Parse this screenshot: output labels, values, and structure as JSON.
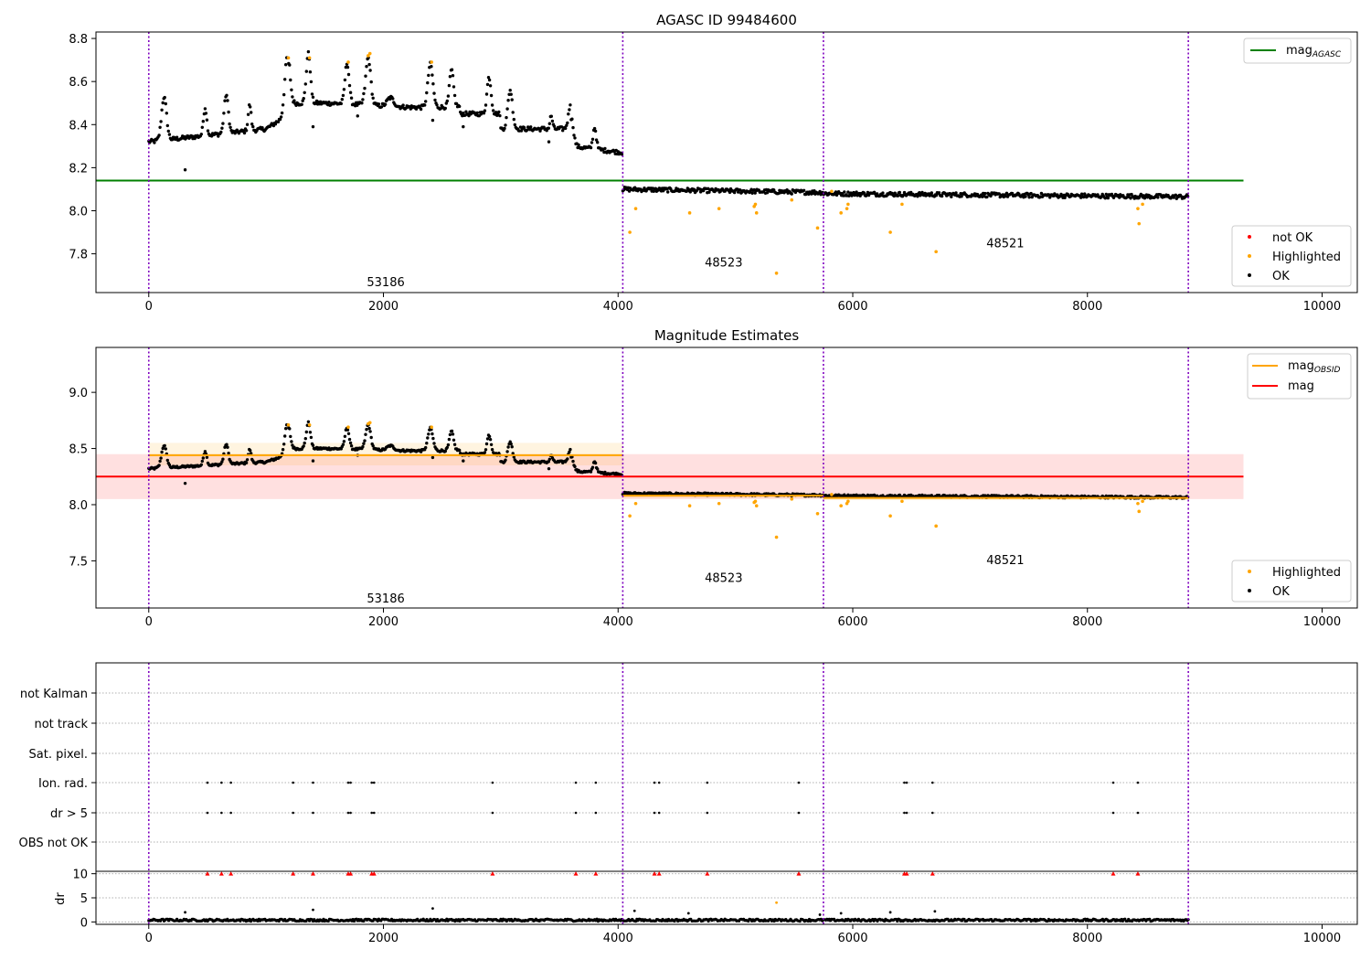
{
  "chart_data": [
    {
      "type": "scatter",
      "title": "AGASC ID 99484600",
      "xlabel": "",
      "ylabel": "",
      "xlim": [
        -450,
        10300
      ],
      "ylim": [
        7.62,
        8.83
      ],
      "x_ticks": [
        0,
        2000,
        4000,
        6000,
        8000,
        10000
      ],
      "y_ticks": [
        7.8,
        8.0,
        8.2,
        8.4,
        8.6,
        8.8
      ],
      "grid": false,
      "obs_boundaries": [
        0,
        4040,
        5750,
        8860
      ],
      "obsid_labels": [
        {
          "text": "53186",
          "x": 2020,
          "y": 7.65
        },
        {
          "text": "48523",
          "x": 4900,
          "y": 7.74
        },
        {
          "text": "48521",
          "x": 7300,
          "y": 7.83
        }
      ],
      "lines": [
        {
          "name": "mag_AGASC",
          "value": 8.14,
          "x_range": [
            -450,
            9330
          ],
          "color": "#008000"
        }
      ],
      "legend_lines": [
        {
          "label": "mag",
          "subscript": "AGASC",
          "color": "#008000"
        }
      ],
      "legend_points": [
        {
          "label": "not OK",
          "color": "#ff0000"
        },
        {
          "label": "Highlighted",
          "color": "#ffa500"
        },
        {
          "label": "OK",
          "color": "#000000"
        }
      ],
      "highlighted_points": [
        [
          1190,
          8.71
        ],
        [
          1370,
          8.71
        ],
        [
          1700,
          8.69
        ],
        [
          1870,
          8.72
        ],
        [
          1885,
          8.73
        ],
        [
          2410,
          8.69
        ],
        [
          4100,
          7.9
        ],
        [
          4150,
          8.01
        ],
        [
          4610,
          7.99
        ],
        [
          4860,
          8.01
        ],
        [
          5160,
          8.02
        ],
        [
          5170,
          8.03
        ],
        [
          5180,
          7.99
        ],
        [
          5350,
          7.71
        ],
        [
          5480,
          8.05
        ],
        [
          5700,
          7.92
        ],
        [
          5820,
          8.09
        ],
        [
          5900,
          7.99
        ],
        [
          5950,
          8.01
        ],
        [
          5960,
          8.03
        ],
        [
          6320,
          7.9
        ],
        [
          6420,
          8.03
        ],
        [
          6710,
          7.81
        ],
        [
          8430,
          8.01
        ],
        [
          8440,
          7.94
        ],
        [
          8470,
          8.03
        ]
      ]
    },
    {
      "type": "scatter",
      "title": "Magnitude Estimates",
      "xlabel": "",
      "ylabel": "",
      "xlim": [
        -450,
        10300
      ],
      "ylim": [
        7.08,
        9.4
      ],
      "x_ticks": [
        0,
        2000,
        4000,
        6000,
        8000,
        10000
      ],
      "y_ticks": [
        7.5,
        8.0,
        8.5,
        9.0
      ],
      "grid": false,
      "obs_boundaries": [
        0,
        4040,
        5750,
        8860
      ],
      "obsid_labels": [
        {
          "text": "53186",
          "x": 2020,
          "y": 7.13
        },
        {
          "text": "48523",
          "x": 4900,
          "y": 7.31
        },
        {
          "text": "48521",
          "x": 7300,
          "y": 7.47
        }
      ],
      "bands": [
        {
          "name": "mag",
          "center": 8.25,
          "low": 8.05,
          "high": 8.45,
          "x_range": [
            -450,
            9330
          ],
          "color": "#ff0000"
        },
        {
          "name": "mag_OBSID",
          "center": 8.44,
          "low": 8.35,
          "high": 8.55,
          "x_range": [
            0,
            4040
          ],
          "color": "#ffa500"
        },
        {
          "name": "mag_OBSID",
          "center": 8.08,
          "low": 8.06,
          "high": 8.1,
          "x_range": [
            4040,
            5750
          ],
          "color": "#ffa500"
        },
        {
          "name": "mag_OBSID",
          "center": 8.06,
          "low": 8.04,
          "high": 8.08,
          "x_range": [
            5750,
            8860
          ],
          "color": "#ffa500"
        }
      ],
      "legend_lines": [
        {
          "label": "mag",
          "subscript": "OBSID",
          "color": "#ffa500"
        },
        {
          "label": "mag",
          "subscript": "",
          "color": "#ff0000"
        }
      ],
      "legend_points": [
        {
          "label": "Highlighted",
          "color": "#ffa500"
        },
        {
          "label": "OK",
          "color": "#000000"
        }
      ],
      "highlighted_points": [
        [
          1190,
          8.71
        ],
        [
          1370,
          8.71
        ],
        [
          1700,
          8.69
        ],
        [
          1870,
          8.72
        ],
        [
          1885,
          8.73
        ],
        [
          2410,
          8.69
        ],
        [
          4100,
          7.9
        ],
        [
          4150,
          8.01
        ],
        [
          4610,
          7.99
        ],
        [
          4860,
          8.01
        ],
        [
          5160,
          8.02
        ],
        [
          5170,
          8.03
        ],
        [
          5180,
          7.99
        ],
        [
          5350,
          7.71
        ],
        [
          5480,
          8.05
        ],
        [
          5700,
          7.92
        ],
        [
          5820,
          8.09
        ],
        [
          5900,
          7.99
        ],
        [
          5950,
          8.01
        ],
        [
          5960,
          8.03
        ],
        [
          6320,
          7.9
        ],
        [
          6420,
          8.03
        ],
        [
          6710,
          7.81
        ],
        [
          8430,
          8.01
        ],
        [
          8440,
          7.94
        ],
        [
          8470,
          8.03
        ]
      ]
    },
    {
      "type": "scatter",
      "title": "",
      "xlim": [
        -450,
        10300
      ],
      "x_ticks": [
        0,
        2000,
        4000,
        6000,
        8000,
        10000
      ],
      "obs_boundaries": [
        0,
        4040,
        5750,
        8860
      ],
      "flag_rows": [
        "not Kalman",
        "not track",
        "Sat. pixel.",
        "Ion. rad.",
        "dr > 5",
        "OBS not OK"
      ],
      "flag_events": [
        {
          "flag": "Ion. rad.",
          "x": [
            500,
            620,
            700,
            1230,
            1400,
            1700,
            1720,
            1900,
            1920,
            2930,
            3640,
            3810,
            4310,
            4350,
            4760,
            5540,
            6440,
            6460,
            6680,
            8220,
            8430
          ]
        },
        {
          "flag": "dr > 5",
          "x": [
            500,
            620,
            700,
            1230,
            1400,
            1700,
            1720,
            1900,
            1920,
            2930,
            3640,
            3810,
            4310,
            4350,
            4760,
            5540,
            6440,
            6460,
            6680,
            8220,
            8430
          ]
        }
      ],
      "dr_panel": {
        "ylabel": "dr",
        "ylim": [
          -0.5,
          10.5
        ],
        "y_ticks": [
          0,
          5,
          10
        ],
        "clipped_marker_x": [
          500,
          620,
          700,
          1230,
          1400,
          1700,
          1720,
          1900,
          1920,
          2930,
          3640,
          3810,
          4310,
          4350,
          4760,
          5540,
          6440,
          6460,
          6680,
          8220,
          8430
        ],
        "outliers": [
          [
            310,
            2.0
          ],
          [
            1400,
            2.5
          ],
          [
            2420,
            2.8
          ],
          [
            4140,
            2.3
          ],
          [
            4600,
            1.8
          ],
          [
            5350,
            4.0
          ],
          [
            5720,
            1.5
          ],
          [
            5900,
            1.8
          ],
          [
            6320,
            2.0
          ],
          [
            6700,
            2.2
          ]
        ]
      }
    }
  ]
}
